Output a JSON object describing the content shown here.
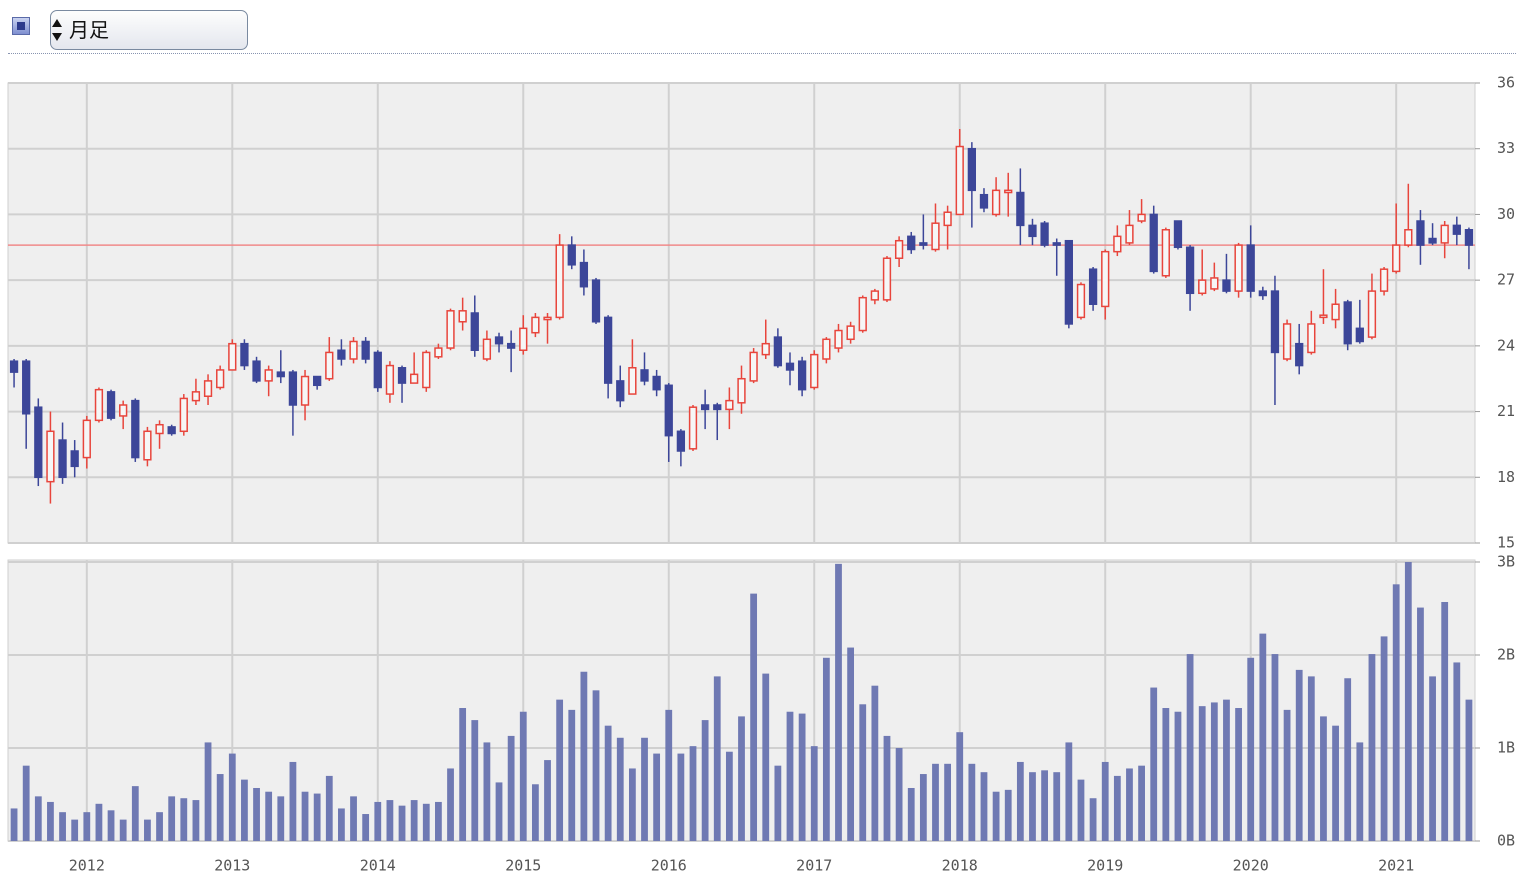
{
  "controls": {
    "period_select": "月足"
  },
  "chart_data": {
    "type": "candlestick",
    "categories": [
      null,
      null,
      null,
      null,
      null,
      null,
      "2012",
      null,
      null,
      null,
      null,
      null,
      null,
      null,
      null,
      null,
      null,
      null,
      "2013",
      null,
      null,
      null,
      null,
      null,
      null,
      null,
      null,
      null,
      null,
      null,
      "2014",
      null,
      null,
      null,
      null,
      null,
      null,
      null,
      null,
      null,
      null,
      null,
      "2015",
      null,
      null,
      null,
      null,
      null,
      null,
      null,
      null,
      null,
      null,
      null,
      "2016",
      null,
      null,
      null,
      null,
      null,
      null,
      null,
      null,
      null,
      null,
      null,
      "2017",
      null,
      null,
      null,
      null,
      null,
      null,
      null,
      null,
      null,
      null,
      null,
      "2018",
      null,
      null,
      null,
      null,
      null,
      null,
      null,
      null,
      null,
      null,
      null,
      "2019",
      null,
      null,
      null,
      null,
      null,
      null,
      null,
      null,
      null,
      null,
      null,
      "2020",
      null,
      null,
      null,
      null,
      null,
      null,
      null,
      null,
      null,
      null,
      null,
      "2021",
      null,
      null,
      null,
      null,
      null,
      null
    ],
    "open": [
      23.3,
      23.3,
      21.2,
      17.8,
      19.7,
      19.2,
      18.9,
      20.6,
      21.9,
      20.8,
      21.5,
      18.8,
      20.0,
      20.3,
      20.1,
      21.5,
      21.7,
      22.1,
      22.9,
      24.1,
      23.3,
      22.4,
      22.8,
      22.8,
      21.3,
      22.6,
      22.5,
      23.8,
      23.4,
      24.2,
      23.7,
      21.8,
      23.0,
      22.3,
      22.1,
      23.5,
      23.9,
      25.1,
      25.5,
      23.4,
      24.4,
      24.1,
      23.8,
      24.6,
      25.2,
      25.3,
      28.6,
      27.8,
      27.0,
      25.3,
      22.4,
      21.8,
      22.9,
      22.6,
      22.2,
      20.1,
      19.3,
      21.3,
      21.3,
      21.1,
      21.4,
      22.4,
      23.6,
      24.4,
      23.2,
      23.3,
      22.1,
      23.4,
      23.9,
      24.3,
      24.7,
      26.1,
      26.1,
      28.0,
      29.0,
      28.7,
      28.4,
      29.5,
      30.0,
      33.0,
      30.9,
      30.0,
      31.0,
      31.0,
      29.5,
      29.6,
      28.7,
      28.8,
      25.3,
      27.5,
      25.8,
      28.3,
      28.7,
      29.7,
      30.0,
      27.2,
      29.7,
      28.5,
      26.4,
      26.6,
      27.0,
      26.5,
      28.6,
      26.5,
      26.5,
      23.4,
      24.1,
      23.7,
      25.3,
      25.2,
      26.0,
      24.8,
      24.4,
      26.5,
      27.4,
      28.6,
      29.7,
      28.9,
      28.7,
      29.5,
      29.3
    ],
    "high": [
      23.4,
      23.4,
      21.6,
      21.0,
      20.5,
      19.7,
      20.8,
      22.1,
      22.0,
      21.5,
      21.6,
      20.3,
      20.6,
      20.4,
      21.8,
      22.5,
      22.7,
      23.1,
      24.3,
      24.3,
      23.5,
      23.1,
      23.8,
      22.9,
      22.9,
      22.6,
      24.4,
      24.3,
      24.4,
      24.4,
      23.8,
      23.3,
      23.1,
      23.7,
      23.8,
      24.1,
      25.7,
      26.2,
      26.3,
      24.7,
      24.6,
      24.7,
      25.4,
      25.5,
      25.5,
      29.1,
      29.0,
      28.4,
      27.1,
      25.4,
      23.1,
      24.3,
      23.7,
      22.9,
      22.3,
      20.2,
      21.3,
      22.0,
      21.4,
      22.1,
      23.1,
      23.9,
      25.2,
      24.8,
      23.7,
      23.5,
      23.8,
      24.4,
      25.0,
      25.1,
      26.3,
      26.6,
      28.1,
      29.0,
      29.2,
      30.0,
      30.5,
      30.4,
      33.9,
      33.3,
      31.2,
      31.7,
      31.9,
      32.1,
      29.8,
      29.7,
      28.9,
      28.8,
      26.9,
      27.6,
      28.4,
      29.5,
      30.2,
      30.7,
      30.4,
      29.4,
      29.7,
      28.6,
      28.4,
      27.8,
      28.2,
      28.7,
      29.5,
      26.7,
      27.2,
      25.2,
      25.0,
      25.6,
      27.5,
      26.6,
      26.1,
      26.1,
      27.3,
      27.6,
      30.5,
      31.4,
      30.2,
      29.6,
      29.7,
      29.9,
      29.4
    ],
    "low": [
      22.1,
      19.3,
      17.6,
      16.8,
      17.7,
      18.0,
      18.4,
      20.5,
      20.6,
      20.2,
      18.7,
      18.5,
      19.3,
      19.9,
      19.9,
      21.3,
      21.3,
      22.0,
      22.9,
      22.9,
      22.3,
      21.7,
      22.3,
      19.9,
      20.6,
      22.0,
      22.4,
      23.1,
      23.2,
      23.2,
      21.9,
      21.4,
      21.4,
      22.3,
      21.9,
      23.4,
      23.8,
      24.7,
      23.5,
      23.3,
      23.7,
      22.8,
      23.6,
      24.4,
      24.1,
      25.2,
      27.5,
      26.3,
      25.0,
      21.6,
      21.2,
      21.8,
      22.2,
      21.7,
      18.7,
      18.5,
      19.2,
      20.2,
      19.7,
      20.2,
      20.9,
      22.3,
      23.4,
      23.0,
      22.2,
      21.7,
      22.0,
      23.2,
      23.7,
      24.1,
      24.6,
      25.9,
      26.0,
      27.6,
      28.2,
      28.4,
      28.3,
      28.4,
      30.0,
      29.4,
      30.1,
      29.9,
      29.9,
      28.6,
      28.6,
      28.5,
      27.2,
      24.8,
      25.2,
      25.6,
      25.2,
      28.1,
      28.6,
      29.6,
      27.3,
      27.1,
      28.4,
      25.6,
      26.3,
      26.5,
      26.4,
      26.2,
      26.2,
      26.1,
      21.3,
      23.3,
      22.7,
      23.6,
      25.0,
      24.8,
      23.8,
      24.1,
      24.3,
      26.3,
      27.3,
      28.5,
      27.7,
      28.6,
      28.0,
      28.6,
      27.5
    ],
    "close": [
      22.8,
      20.9,
      18.0,
      20.1,
      18.0,
      18.5,
      20.6,
      22.0,
      20.7,
      21.3,
      18.9,
      20.1,
      20.4,
      20.0,
      21.6,
      21.9,
      22.4,
      22.9,
      24.1,
      23.1,
      22.4,
      22.9,
      22.6,
      21.3,
      22.6,
      22.2,
      23.7,
      23.4,
      24.2,
      23.4,
      22.1,
      23.1,
      22.3,
      22.7,
      23.7,
      23.9,
      25.6,
      25.6,
      23.8,
      24.3,
      24.1,
      23.9,
      24.8,
      25.3,
      25.3,
      28.6,
      27.7,
      26.7,
      25.1,
      22.3,
      21.5,
      23.0,
      22.4,
      22.0,
      19.9,
      19.2,
      21.2,
      21.1,
      21.1,
      21.5,
      22.5,
      23.7,
      24.1,
      23.1,
      22.9,
      22.0,
      23.6,
      24.3,
      24.7,
      24.9,
      26.2,
      26.5,
      28.0,
      28.8,
      28.4,
      28.6,
      29.6,
      30.1,
      33.1,
      31.1,
      30.3,
      31.1,
      31.1,
      29.5,
      29.0,
      28.6,
      28.6,
      25.0,
      26.8,
      25.9,
      28.3,
      29.0,
      29.5,
      30.0,
      27.4,
      29.3,
      28.5,
      26.4,
      27.0,
      27.1,
      26.5,
      28.6,
      26.5,
      26.3,
      23.7,
      25.0,
      23.1,
      25.0,
      25.4,
      25.9,
      24.1,
      24.2,
      26.5,
      27.5,
      28.6,
      29.3,
      28.6,
      28.7,
      29.5,
      29.1,
      28.6
    ],
    "volume": [
      0.35,
      0.81,
      0.48,
      0.42,
      0.31,
      0.23,
      0.31,
      0.4,
      0.33,
      0.23,
      0.59,
      0.23,
      0.31,
      0.48,
      0.46,
      0.44,
      1.06,
      0.72,
      0.94,
      0.66,
      0.57,
      0.53,
      0.48,
      0.85,
      0.53,
      0.51,
      0.7,
      0.35,
      0.48,
      0.29,
      0.42,
      0.44,
      0.38,
      0.44,
      0.4,
      0.42,
      0.78,
      1.43,
      1.3,
      1.06,
      0.63,
      1.13,
      1.39,
      0.61,
      0.87,
      1.52,
      1.41,
      1.82,
      1.62,
      1.24,
      1.11,
      0.78,
      1.11,
      0.94,
      1.41,
      0.94,
      1.02,
      1.3,
      1.77,
      0.96,
      1.34,
      2.66,
      1.8,
      0.81,
      1.39,
      1.37,
      1.02,
      1.97,
      2.98,
      2.08,
      1.47,
      1.67,
      1.13,
      1.0,
      0.57,
      0.72,
      0.83,
      0.83,
      1.17,
      0.83,
      0.74,
      0.53,
      0.55,
      0.85,
      0.74,
      0.76,
      0.74,
      1.06,
      0.66,
      0.46,
      0.85,
      0.7,
      0.78,
      0.81,
      1.65,
      1.43,
      1.39,
      2.01,
      1.45,
      1.49,
      1.52,
      1.43,
      1.97,
      2.23,
      2.01,
      1.41,
      1.84,
      1.77,
      1.34,
      1.24,
      1.75,
      1.06,
      2.01,
      2.2,
      2.76,
      3.0,
      2.51,
      1.77,
      2.57,
      1.92,
      1.52
    ],
    "ylim": [
      15,
      36
    ],
    "yticks": [
      15,
      18,
      21,
      24,
      27,
      30,
      33,
      36
    ],
    "volume_ylim": [
      0,
      3
    ],
    "volume_yticks": [
      {
        "value": 0,
        "label": "0B"
      },
      {
        "value": 1,
        "label": "1B"
      },
      {
        "value": 2,
        "label": "2B"
      },
      {
        "value": 3,
        "label": "3B"
      }
    ],
    "reference_line": 28.6,
    "reference_color": "#f08a8a",
    "up_color": "#e8453c",
    "down_color": "#3c4699",
    "volume_color": "#6f79b3",
    "grid": true
  }
}
